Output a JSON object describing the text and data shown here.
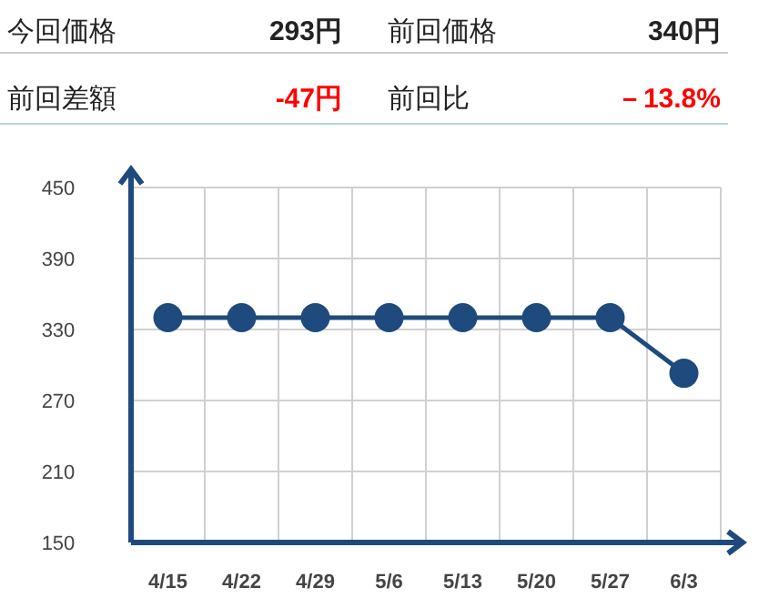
{
  "chart_data": [
    {
      "type": "other",
      "annotations": [
        "今回価格",
        "293円",
        "前回価格",
        "340円",
        "前回差額",
        "-47円",
        "前回比",
        "－13.8%"
      ]
    },
    {
      "type": "line",
      "categories": [
        "4/15",
        "4/22",
        "4/29",
        "5/6",
        "5/13",
        "5/20",
        "5/27",
        "6/3"
      ],
      "series": [
        {
          "color": "#1e4a7d",
          "values": [
            340,
            340,
            340,
            340,
            340,
            340,
            340,
            293
          ]
        }
      ],
      "ylim": [
        150,
        450
      ],
      "yticks": [
        150,
        210,
        270,
        330,
        390,
        450
      ],
      "grid": true,
      "marker": "circle",
      "line_style": "solid"
    }
  ]
}
